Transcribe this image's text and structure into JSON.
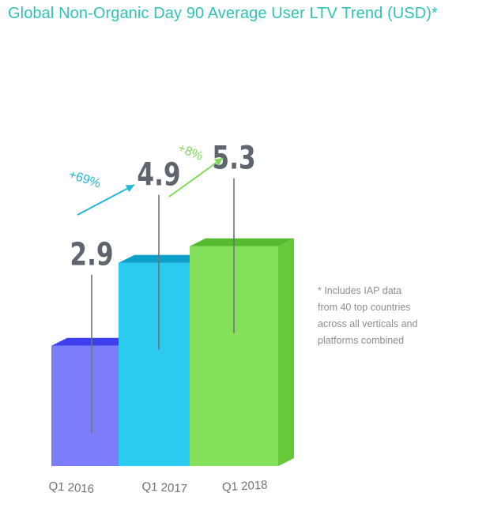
{
  "chart_data": {
    "type": "bar",
    "title": "Global Non-Organic Day 90 Average User LTV Trend (USD)*",
    "categories": [
      "Q1 2016",
      "Q1 2017",
      "Q1 2018"
    ],
    "values": [
      2.9,
      4.9,
      5.3
    ],
    "value_labels": [
      "2.9",
      "4.9",
      "5.3"
    ],
    "growth_annotations": [
      {
        "from": "Q1 2016",
        "to": "Q1 2017",
        "label": "+69%",
        "color": "#22b7d8"
      },
      {
        "from": "Q1 2017",
        "to": "Q1 2018",
        "label": "+8%",
        "color": "#7ed957"
      }
    ],
    "colors": {
      "Q1 2016": {
        "front": "#7b7dfb",
        "side": "#5a5cf2",
        "top": "#3e40f0"
      },
      "Q1 2017": {
        "front": "#2bcbef",
        "side": "#15aed6",
        "top": "#0e9fcb"
      },
      "Q1 2018": {
        "front": "#84e05a",
        "side": "#65c93a",
        "top": "#55bb2e"
      }
    },
    "grid": false,
    "ylim": [
      0,
      6
    ]
  },
  "footnote": [
    "* Includes IAP data",
    "from 40 top countries",
    "across all verticals and",
    "platforms combined"
  ]
}
